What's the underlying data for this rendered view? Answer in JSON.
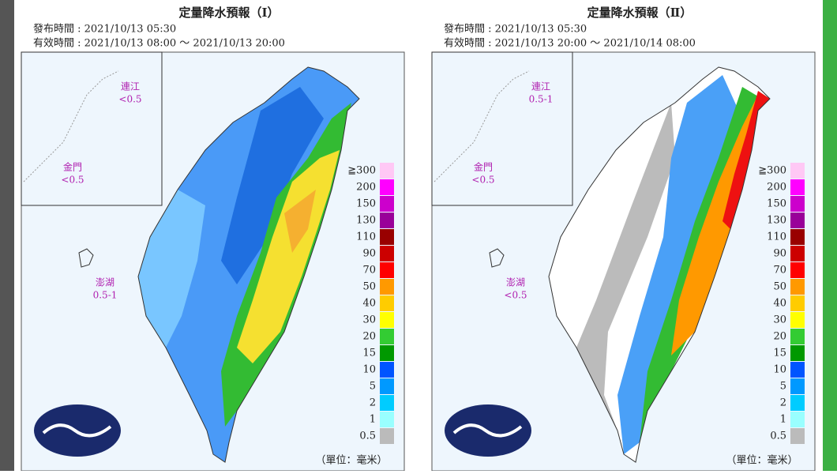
{
  "panels": [
    {
      "title": "定量降水預報（Ⅰ）",
      "issued": "發布時間 : 2021/10/13 05:30",
      "valid": "有效時間 : 2021/10/13 08:00 ～ 2021/10/13 20:00",
      "islands": [
        {
          "name": "連江",
          "value": "<0.5"
        },
        {
          "name": "金門",
          "value": "<0.5"
        },
        {
          "name": "澎湖",
          "value": "0.5-1"
        }
      ],
      "unit": "（單位：毫米）"
    },
    {
      "title": "定量降水預報（Ⅱ）",
      "issued": "發布時間 : 2021/10/13 05:30",
      "valid": "有效時間 : 2021/10/13 20:00 ～ 2021/10/14 08:00",
      "islands": [
        {
          "name": "連江",
          "value": "0.5-1"
        },
        {
          "name": "金門",
          "value": "<0.5"
        },
        {
          "name": "澎湖",
          "value": "<0.5"
        }
      ],
      "unit": "（單位：毫米）"
    }
  ],
  "legend": {
    "labels": [
      "≧300",
      "200",
      "150",
      "130",
      "110",
      "90",
      "70",
      "50",
      "40",
      "30",
      "20",
      "15",
      "10",
      "5",
      "2",
      "1",
      "0.5"
    ],
    "colors": [
      "#ffc8f5",
      "#ff00ff",
      "#cc00cc",
      "#990099",
      "#990000",
      "#cc0000",
      "#ff0000",
      "#ff9900",
      "#ffcc00",
      "#ffff00",
      "#33cc33",
      "#009900",
      "#0055ff",
      "#0099ff",
      "#00ccff",
      "#99ffff",
      "#bbbbbb"
    ]
  }
}
